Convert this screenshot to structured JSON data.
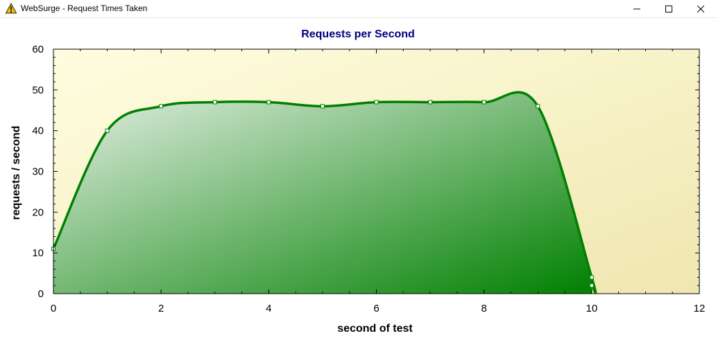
{
  "window": {
    "title": "WebSurge - Request Times Taken",
    "icon": "websurge-warning-icon",
    "controls": {
      "minimize": "minimize-icon",
      "maximize": "maximize-icon",
      "close": "close-icon"
    }
  },
  "chart_data": {
    "type": "area",
    "title": "Requests per Second",
    "xlabel": "second of test",
    "ylabel": "requests / second",
    "xlim": [
      0,
      12
    ],
    "ylim": [
      0,
      60
    ],
    "x_ticks": [
      "0",
      "2",
      "4",
      "6",
      "8",
      "10",
      "12"
    ],
    "y_ticks": [
      "0",
      "10",
      "20",
      "30",
      "40",
      "50",
      "60"
    ],
    "smooth": true,
    "grid": false,
    "series": [
      {
        "x": [
          0,
          1,
          2,
          3,
          4,
          5,
          6,
          7,
          8,
          9,
          10,
          10
        ],
        "y": [
          11,
          40,
          46,
          47,
          47,
          46,
          47,
          47,
          47,
          46,
          4,
          2
        ]
      }
    ],
    "colors": {
      "title": "#00007f",
      "line": "#008000",
      "fill_light": "#e6f0e6",
      "fill_dark": "#008000",
      "bg_light": "#fffde0",
      "bg_dark": "#efe7b0",
      "marker_fill": "#ffffff"
    }
  }
}
